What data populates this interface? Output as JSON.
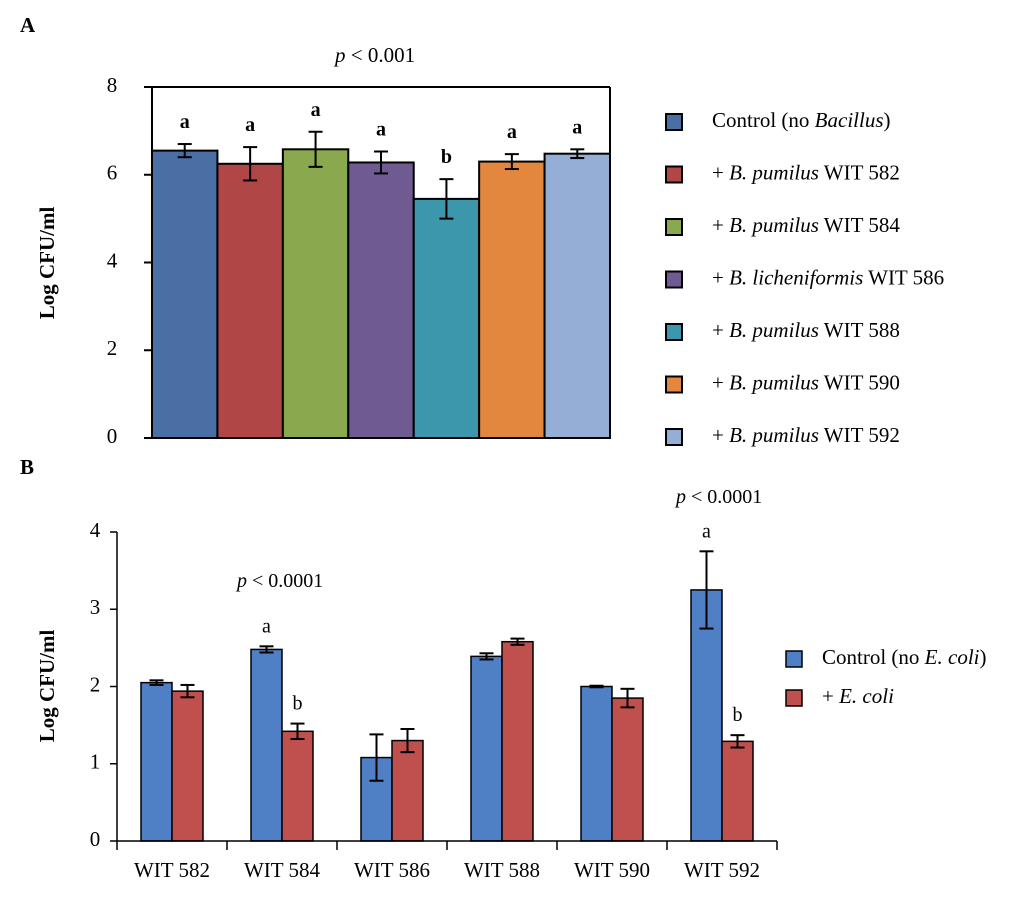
{
  "chart_data": [
    {
      "panel_label": "A",
      "type": "bar",
      "ylabel": "Log CFU/ml",
      "ylim": [
        0,
        8
      ],
      "yticks": [
        "0",
        "2",
        "4",
        "6",
        "8"
      ],
      "p_value": {
        "p": "p",
        "rest": " < 0.001"
      },
      "categories": [
        "Control (no Bacillus)",
        "+ B. pumilus WIT 582",
        "+ B. pumilus WIT 584",
        "+ B. licheniformis WIT 586",
        "+ B. pumilus WIT 588",
        "+ B. pumilus WIT 590",
        "+ B. pumilus WIT 592"
      ],
      "values": [
        6.55,
        6.25,
        6.58,
        6.28,
        5.45,
        6.3,
        6.48
      ],
      "errors": [
        0.15,
        0.38,
        0.4,
        0.25,
        0.45,
        0.17,
        0.1
      ],
      "significance": [
        "a",
        "a",
        "a",
        "a",
        "b",
        "a",
        "a"
      ],
      "colors": [
        "#4a6fa5",
        "#b04746",
        "#8aa84d",
        "#6f5a92",
        "#3c97ad",
        "#e3873f",
        "#95aed5"
      ],
      "legend": [
        {
          "pre": "Control (no ",
          "ital": "Bacillus",
          "post": ")"
        },
        {
          "pre": "+ ",
          "ital": "B. pumilus",
          "post": " WIT 582"
        },
        {
          "pre": "+ ",
          "ital": "B. pumilus",
          "post": " WIT 584"
        },
        {
          "pre": "+ ",
          "ital": "B. licheniformis",
          "post": " WIT 586"
        },
        {
          "pre": "+ ",
          "ital": "B. pumilus",
          "post": " WIT 588"
        },
        {
          "pre": "+ ",
          "ital": "B. pumilus",
          "post": " WIT 590"
        },
        {
          "pre": "+ ",
          "ital": "B. pumilus",
          "post": " WIT 592"
        }
      ]
    },
    {
      "panel_label": "B",
      "type": "bar",
      "ylabel": "Log CFU/ml",
      "ylim": [
        0,
        4
      ],
      "yticks": [
        "0",
        "1",
        "2",
        "3",
        "4"
      ],
      "categories": [
        "WIT 582",
        "WIT 584",
        "WIT 586",
        "WIT 588",
        "WIT 590",
        "WIT 592"
      ],
      "series": [
        {
          "name": "Control (no E. coli)",
          "color": "#4f7fc4",
          "values": [
            2.05,
            2.48,
            1.08,
            2.39,
            2.0,
            3.25
          ],
          "errors": [
            0.03,
            0.04,
            0.3,
            0.04,
            0.01,
            0.5
          ],
          "significance": [
            "",
            "a",
            "",
            "",
            "",
            "a"
          ]
        },
        {
          "name": "+ E. coli",
          "color": "#c0504d",
          "values": [
            1.94,
            1.42,
            1.3,
            2.58,
            1.85,
            1.29
          ],
          "errors": [
            0.08,
            0.1,
            0.15,
            0.04,
            0.12,
            0.08
          ],
          "significance": [
            "",
            "b",
            "",
            "",
            "",
            "b"
          ]
        }
      ],
      "p_values": [
        {
          "p": "p",
          "rest": " < 0.0001"
        },
        {
          "p": "p",
          "rest": " < 0.0001"
        }
      ],
      "legend": [
        {
          "pre": "Control (no ",
          "ital": "E. coli",
          "post": ")"
        },
        {
          "pre": "+ ",
          "ital": "E. coli",
          "post": ""
        }
      ]
    }
  ]
}
